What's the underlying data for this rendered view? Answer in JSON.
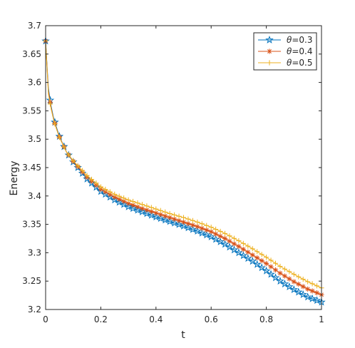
{
  "chart_data": {
    "type": "line",
    "xlabel": "t",
    "ylabel": "Energy",
    "xlim": [
      0,
      1
    ],
    "ylim": [
      3.2,
      3.7
    ],
    "xticks": [
      "0",
      "0.2",
      "0.4",
      "0.6",
      "0.8",
      "1"
    ],
    "yticks": [
      "3.2",
      "3.25",
      "3.3",
      "3.35",
      "3.4",
      "3.45",
      "3.5",
      "3.55",
      "3.6",
      "3.65",
      "3.7"
    ],
    "grid": false,
    "legend_position": "top-right",
    "series": [
      {
        "name": "θ=0.3",
        "legend_label": {
          "symbol": "θ",
          "rest": "=0.3"
        },
        "color": "#0072BD",
        "marker": "pentagram",
        "points": [
          [
            0,
            3.673
          ],
          [
            0.01,
            3.59
          ],
          [
            0.02,
            3.558
          ],
          [
            0.03,
            3.535
          ],
          [
            0.04,
            3.52
          ],
          [
            0.05,
            3.505
          ],
          [
            0.075,
            3.478
          ],
          [
            0.1,
            3.46
          ],
          [
            0.15,
            3.43
          ],
          [
            0.2,
            3.408
          ],
          [
            0.25,
            3.393
          ],
          [
            0.3,
            3.381
          ],
          [
            0.35,
            3.372
          ],
          [
            0.4,
            3.363
          ],
          [
            0.45,
            3.355
          ],
          [
            0.5,
            3.347
          ],
          [
            0.55,
            3.338
          ],
          [
            0.6,
            3.328
          ],
          [
            0.65,
            3.315
          ],
          [
            0.7,
            3.3
          ],
          [
            0.75,
            3.285
          ],
          [
            0.8,
            3.268
          ],
          [
            0.85,
            3.25
          ],
          [
            0.9,
            3.235
          ],
          [
            0.95,
            3.222
          ],
          [
            1,
            3.213
          ]
        ]
      },
      {
        "name": "θ=0.4",
        "legend_label": {
          "symbol": "θ",
          "rest": "=0.4"
        },
        "color": "#D95319",
        "marker": "asterisk",
        "points": [
          [
            0,
            3.673
          ],
          [
            0.01,
            3.585
          ],
          [
            0.02,
            3.555
          ],
          [
            0.03,
            3.533
          ],
          [
            0.04,
            3.518
          ],
          [
            0.05,
            3.504
          ],
          [
            0.075,
            3.478
          ],
          [
            0.1,
            3.461
          ],
          [
            0.15,
            3.433
          ],
          [
            0.2,
            3.412
          ],
          [
            0.25,
            3.398
          ],
          [
            0.3,
            3.387
          ],
          [
            0.35,
            3.378
          ],
          [
            0.4,
            3.37
          ],
          [
            0.45,
            3.362
          ],
          [
            0.5,
            3.354
          ],
          [
            0.55,
            3.346
          ],
          [
            0.6,
            3.337
          ],
          [
            0.65,
            3.325
          ],
          [
            0.7,
            3.311
          ],
          [
            0.75,
            3.296
          ],
          [
            0.8,
            3.281
          ],
          [
            0.85,
            3.264
          ],
          [
            0.9,
            3.249
          ],
          [
            0.95,
            3.236
          ],
          [
            1,
            3.226
          ]
        ]
      },
      {
        "name": "θ=0.5",
        "legend_label": {
          "symbol": "θ",
          "rest": "=0.5"
        },
        "color": "#EDB120",
        "marker": "plus",
        "points": [
          [
            0,
            3.673
          ],
          [
            0.01,
            3.58
          ],
          [
            0.02,
            3.553
          ],
          [
            0.03,
            3.532
          ],
          [
            0.04,
            3.517
          ],
          [
            0.05,
            3.503
          ],
          [
            0.075,
            3.478
          ],
          [
            0.1,
            3.462
          ],
          [
            0.15,
            3.436
          ],
          [
            0.2,
            3.416
          ],
          [
            0.25,
            3.403
          ],
          [
            0.3,
            3.393
          ],
          [
            0.35,
            3.385
          ],
          [
            0.4,
            3.377
          ],
          [
            0.45,
            3.369
          ],
          [
            0.5,
            3.362
          ],
          [
            0.55,
            3.354
          ],
          [
            0.6,
            3.345
          ],
          [
            0.65,
            3.334
          ],
          [
            0.7,
            3.321
          ],
          [
            0.75,
            3.307
          ],
          [
            0.8,
            3.292
          ],
          [
            0.85,
            3.276
          ],
          [
            0.9,
            3.262
          ],
          [
            0.95,
            3.249
          ],
          [
            1,
            3.238
          ]
        ]
      }
    ]
  }
}
